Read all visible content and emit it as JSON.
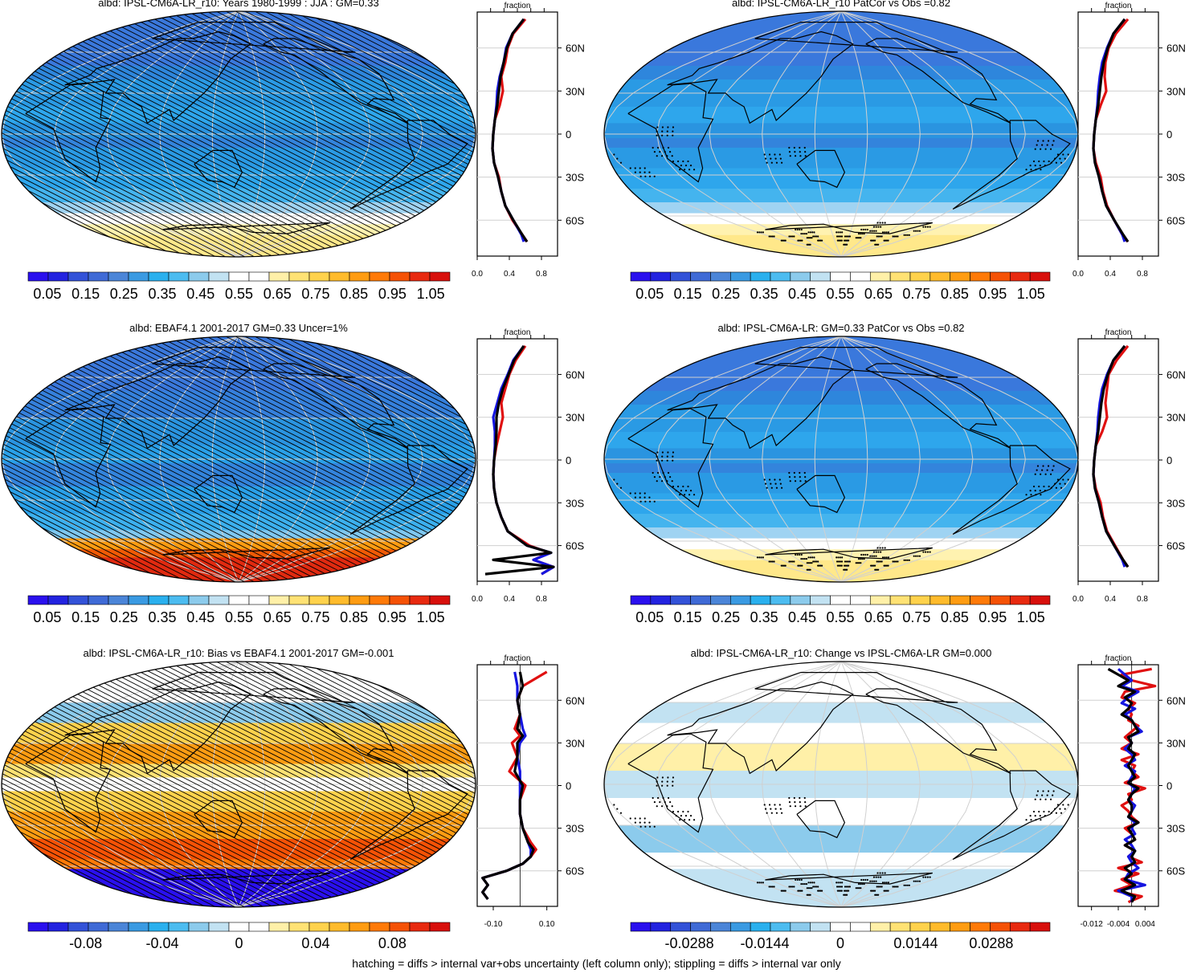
{
  "footnote": "hatching = diffs > internal var+obs uncertainty (left column only); stippling = diffs > internal var only",
  "chart_data": [
    {
      "type": "heatmap",
      "title": "albd: IPSL-CM6A-LR_r10: Years 1980-1999 : JJA : GM=0.33",
      "field": "albedo",
      "colorbar": {
        "labels": [
          "0.05",
          "0.15",
          "0.25",
          "0.35",
          "0.45",
          "0.55",
          "0.65",
          "0.75",
          "0.85",
          "0.95",
          "1.05"
        ],
        "range": [
          0.0,
          1.1
        ]
      },
      "overlay": "hatching",
      "zonal_profile": {
        "title": "fraction",
        "xlim": [
          0.0,
          1.0
        ],
        "xticks": [
          "0.0",
          "0.4",
          "0.8"
        ],
        "yticks": [
          "60N",
          "30N",
          "0",
          "30S",
          "60S"
        ],
        "lat": [
          80,
          70,
          60,
          50,
          40,
          30,
          20,
          10,
          0,
          -10,
          -20,
          -30,
          -40,
          -50,
          -60,
          -70,
          -75
        ],
        "series": [
          {
            "color": "#e01010",
            "values": [
              0.6,
              0.45,
              0.38,
              0.35,
              0.3,
              0.32,
              0.28,
              0.22,
              0.2,
              0.19,
              0.21,
              0.27,
              0.3,
              0.35,
              0.44,
              0.56,
              0.62
            ]
          },
          {
            "color": "#1515e0",
            "values": [
              0.58,
              0.44,
              0.36,
              0.33,
              0.28,
              0.25,
              0.24,
              0.22,
              0.2,
              0.19,
              0.21,
              0.26,
              0.3,
              0.35,
              0.45,
              0.55,
              0.58
            ]
          },
          {
            "color": "#000000",
            "values": [
              0.58,
              0.44,
              0.37,
              0.33,
              0.29,
              0.27,
              0.25,
              0.22,
              0.2,
              0.19,
              0.21,
              0.26,
              0.3,
              0.35,
              0.45,
              0.56,
              0.62
            ]
          }
        ]
      }
    },
    {
      "type": "heatmap",
      "title": "albd: IPSL-CM6A-LR_r10 PatCor vs Obs =0.82",
      "field": "albedo",
      "colorbar": {
        "labels": [
          "0.05",
          "0.15",
          "0.25",
          "0.35",
          "0.45",
          "0.55",
          "0.65",
          "0.75",
          "0.85",
          "0.95",
          "1.05"
        ],
        "range": [
          0.0,
          1.1
        ]
      },
      "overlay": "stippling",
      "zonal_profile": {
        "title": "fraction",
        "xlim": [
          0.0,
          1.0
        ],
        "xticks": [
          "0.0",
          "0.4",
          "0.8"
        ],
        "yticks": [
          "60N",
          "30N",
          "0",
          "30S",
          "60S"
        ],
        "lat": [
          80,
          70,
          60,
          50,
          40,
          30,
          20,
          10,
          0,
          -10,
          -20,
          -30,
          -40,
          -50,
          -60,
          -70,
          -75
        ],
        "series": [
          {
            "color": "#e01010",
            "values": [
              0.62,
              0.47,
              0.38,
              0.34,
              0.33,
              0.35,
              0.28,
              0.22,
              0.2,
              0.19,
              0.22,
              0.28,
              0.31,
              0.36,
              0.45,
              0.55,
              0.62
            ]
          },
          {
            "color": "#1515e0",
            "values": [
              0.58,
              0.44,
              0.36,
              0.3,
              0.27,
              0.25,
              0.24,
              0.22,
              0.2,
              0.19,
              0.21,
              0.26,
              0.3,
              0.35,
              0.45,
              0.55,
              0.58
            ]
          },
          {
            "color": "#000000",
            "values": [
              0.58,
              0.44,
              0.37,
              0.32,
              0.29,
              0.27,
              0.25,
              0.22,
              0.2,
              0.19,
              0.21,
              0.26,
              0.3,
              0.35,
              0.45,
              0.56,
              0.62
            ]
          }
        ]
      }
    },
    {
      "type": "heatmap",
      "title": "albd: EBAF4.1 2001-2017 GM=0.33 Uncer=1%",
      "field": "albedo",
      "colorbar": {
        "labels": [
          "0.05",
          "0.15",
          "0.25",
          "0.35",
          "0.45",
          "0.55",
          "0.65",
          "0.75",
          "0.85",
          "0.95",
          "1.05"
        ],
        "range": [
          0.0,
          1.1
        ]
      },
      "overlay": "hatching",
      "zonal_profile": {
        "title": "fraction",
        "xlim": [
          0.0,
          1.0
        ],
        "xticks": [
          "0.0",
          "0.4",
          "0.8"
        ],
        "yticks": [
          "60N",
          "30N",
          "0",
          "30S",
          "60S"
        ],
        "lat": [
          80,
          70,
          60,
          50,
          40,
          30,
          20,
          10,
          0,
          -10,
          -20,
          -30,
          -40,
          -50,
          -60,
          -65,
          -70,
          -75,
          -80
        ],
        "series": [
          {
            "color": "#e01010",
            "values": [
              0.6,
              0.48,
              0.4,
              0.35,
              0.3,
              0.32,
              0.28,
              0.24,
              0.21,
              0.2,
              0.21,
              0.24,
              0.3,
              0.38,
              0.65,
              0.9,
              0.7,
              0.95,
              0.8
            ]
          },
          {
            "color": "#1515e0",
            "values": [
              0.58,
              0.45,
              0.38,
              0.3,
              0.25,
              0.2,
              0.22,
              0.22,
              0.21,
              0.2,
              0.21,
              0.24,
              0.3,
              0.38,
              0.62,
              0.92,
              0.7,
              0.95,
              0.8
            ]
          },
          {
            "color": "#000000",
            "values": [
              0.58,
              0.46,
              0.39,
              0.32,
              0.27,
              0.24,
              0.24,
              0.23,
              0.21,
              0.2,
              0.21,
              0.24,
              0.3,
              0.38,
              0.62,
              0.92,
              0.2,
              0.95,
              0.1
            ]
          }
        ]
      }
    },
    {
      "type": "heatmap",
      "title": "albd: IPSL-CM6A-LR: GM=0.33 PatCor vs Obs =0.82",
      "field": "albedo",
      "colorbar": {
        "labels": [
          "0.05",
          "0.15",
          "0.25",
          "0.35",
          "0.45",
          "0.55",
          "0.65",
          "0.75",
          "0.85",
          "0.95",
          "1.05"
        ],
        "range": [
          0.0,
          1.1
        ]
      },
      "overlay": "stippling",
      "zonal_profile": {
        "title": "fraction",
        "xlim": [
          0.0,
          1.0
        ],
        "xticks": [
          "0.0",
          "0.4",
          "0.8"
        ],
        "yticks": [
          "60N",
          "30N",
          "0",
          "30S",
          "60S"
        ],
        "lat": [
          80,
          70,
          60,
          50,
          40,
          30,
          20,
          10,
          0,
          -10,
          -20,
          -30,
          -40,
          -50,
          -60,
          -70,
          -75
        ],
        "series": [
          {
            "color": "#e01010",
            "values": [
              0.62,
              0.48,
              0.38,
              0.36,
              0.34,
              0.36,
              0.3,
              0.22,
              0.2,
              0.19,
              0.22,
              0.28,
              0.31,
              0.36,
              0.46,
              0.56,
              0.62
            ]
          },
          {
            "color": "#1515e0",
            "values": [
              0.58,
              0.44,
              0.36,
              0.3,
              0.27,
              0.25,
              0.24,
              0.22,
              0.2,
              0.19,
              0.21,
              0.26,
              0.3,
              0.35,
              0.45,
              0.55,
              0.58
            ]
          },
          {
            "color": "#000000",
            "values": [
              0.58,
              0.44,
              0.37,
              0.32,
              0.29,
              0.27,
              0.25,
              0.22,
              0.2,
              0.19,
              0.21,
              0.26,
              0.3,
              0.35,
              0.45,
              0.56,
              0.62
            ]
          }
        ]
      }
    },
    {
      "type": "heatmap",
      "title": "albd: IPSL-CM6A-LR_r10: Bias vs EBAF4.1 2001-2017 GM=-0.001",
      "field": "albedo bias",
      "colorbar": {
        "labels": [
          "-0.08",
          "-0.04",
          "0",
          "0.04",
          "0.08"
        ],
        "range": [
          -0.11,
          0.11
        ]
      },
      "overlay": "hatching",
      "zonal_profile": {
        "title": "fraction",
        "xlim": [
          -0.16,
          0.14
        ],
        "xticks": [
          "-0.10",
          "0.10"
        ],
        "yticks": [
          "60N",
          "30N",
          "0",
          "30S",
          "60S"
        ],
        "lat": [
          80,
          70,
          60,
          50,
          40,
          35,
          30,
          20,
          10,
          0,
          -10,
          -20,
          -30,
          -40,
          -45,
          -50,
          -55,
          -60,
          -65,
          -70,
          -75,
          -80
        ],
        "series": [
          {
            "color": "#e01010",
            "values": [
              0.1,
              0.01,
              -0.01,
              0.0,
              -0.02,
              0.0,
              -0.03,
              -0.01,
              -0.04,
              0.02,
              0.0,
              0.0,
              0.01,
              0.04,
              0.06,
              0.04,
              0.01,
              -0.05,
              -0.14,
              -0.12,
              -0.14,
              -0.12
            ]
          },
          {
            "color": "#1515e0",
            "values": [
              -0.02,
              -0.01,
              -0.01,
              0.0,
              0.01,
              0.02,
              0.0,
              -0.01,
              0.0,
              0.0,
              0.0,
              0.0,
              0.01,
              0.03,
              0.04,
              0.04,
              0.01,
              -0.05,
              -0.14,
              -0.12,
              -0.14,
              -0.12
            ]
          },
          {
            "color": "#000000",
            "values": [
              0.0,
              0.01,
              -0.01,
              0.0,
              -0.01,
              0.01,
              -0.01,
              -0.01,
              -0.02,
              0.01,
              0.0,
              0.0,
              0.01,
              0.03,
              0.05,
              0.04,
              0.01,
              -0.05,
              -0.14,
              -0.12,
              -0.14,
              -0.12
            ]
          }
        ]
      }
    },
    {
      "type": "heatmap",
      "title": "albd: IPSL-CM6A-LR_r10: Change vs IPSL-CM6A-LR GM=0.000",
      "field": "albedo change",
      "colorbar": {
        "labels": [
          "-0.0288",
          "-0.0144",
          "0",
          "0.0144",
          "0.0288"
        ],
        "range": [
          -0.04,
          0.04
        ]
      },
      "overlay": "stippling",
      "zonal_profile": {
        "title": "fraction",
        "xlim": [
          -0.016,
          0.008
        ],
        "xticks": [
          "-0.012",
          "-0.004",
          "0.004"
        ],
        "yticks": [
          "60N",
          "30N",
          "0",
          "30S",
          "60S"
        ],
        "lat": [
          82,
          78,
          74,
          70,
          66,
          62,
          58,
          54,
          50,
          46,
          42,
          38,
          34,
          30,
          26,
          22,
          18,
          14,
          10,
          6,
          2,
          -2,
          -6,
          -10,
          -14,
          -18,
          -22,
          -26,
          -30,
          -34,
          -38,
          -42,
          -46,
          -50,
          -54,
          -58,
          -62,
          -66,
          -70,
          -74,
          -78,
          -82
        ],
        "series": [
          {
            "color": "#e01010",
            "values": [
              0.006,
              -0.003,
              0.0,
              0.007,
              -0.002,
              -0.003,
              0.001,
              -0.001,
              0.0,
              -0.001,
              0.002,
              0.0,
              -0.002,
              0.0,
              -0.003,
              0.002,
              -0.003,
              0.001,
              0.0,
              0.002,
              -0.002,
              0.004,
              -0.001,
              0.0,
              -0.003,
              -0.001,
              0.0,
              0.002,
              -0.002,
              0.0,
              0.001,
              -0.002,
              0.001,
              -0.001,
              0.003,
              -0.004,
              0.002,
              -0.003,
              0.0,
              -0.005,
              0.003,
              -0.001
            ]
          },
          {
            "color": "#1515e0",
            "values": [
              -0.004,
              -0.002,
              0.0,
              -0.003,
              0.002,
              -0.001,
              -0.003,
              0.001,
              -0.002,
              0.0,
              0.001,
              0.003,
              -0.001,
              0.0,
              -0.002,
              0.0,
              0.001,
              -0.002,
              0.001,
              0.0,
              -0.001,
              0.001,
              0.0,
              -0.001,
              0.001,
              0.0,
              -0.001,
              0.001,
              0.0,
              0.001,
              -0.002,
              0.0,
              0.001,
              -0.001,
              0.0,
              0.002,
              -0.001,
              -0.002,
              0.004,
              -0.004,
              0.0,
              0.0
            ]
          },
          {
            "color": "#000000",
            "values": [
              -0.007,
              -0.004,
              -0.001,
              -0.004,
              0.001,
              -0.002,
              0.0,
              -0.001,
              -0.003,
              0.0,
              0.001,
              0.002,
              -0.001,
              0.0,
              -0.001,
              0.001,
              0.0,
              -0.001,
              0.0,
              0.001,
              -0.001,
              0.002,
              0.0,
              -0.001,
              0.0,
              0.0,
              -0.001,
              0.002,
              -0.001,
              0.0,
              0.001,
              -0.002,
              0.001,
              0.0,
              0.001,
              -0.002,
              0.0,
              -0.002,
              0.001,
              -0.003,
              0.001,
              0.0
            ]
          }
        ]
      }
    }
  ]
}
